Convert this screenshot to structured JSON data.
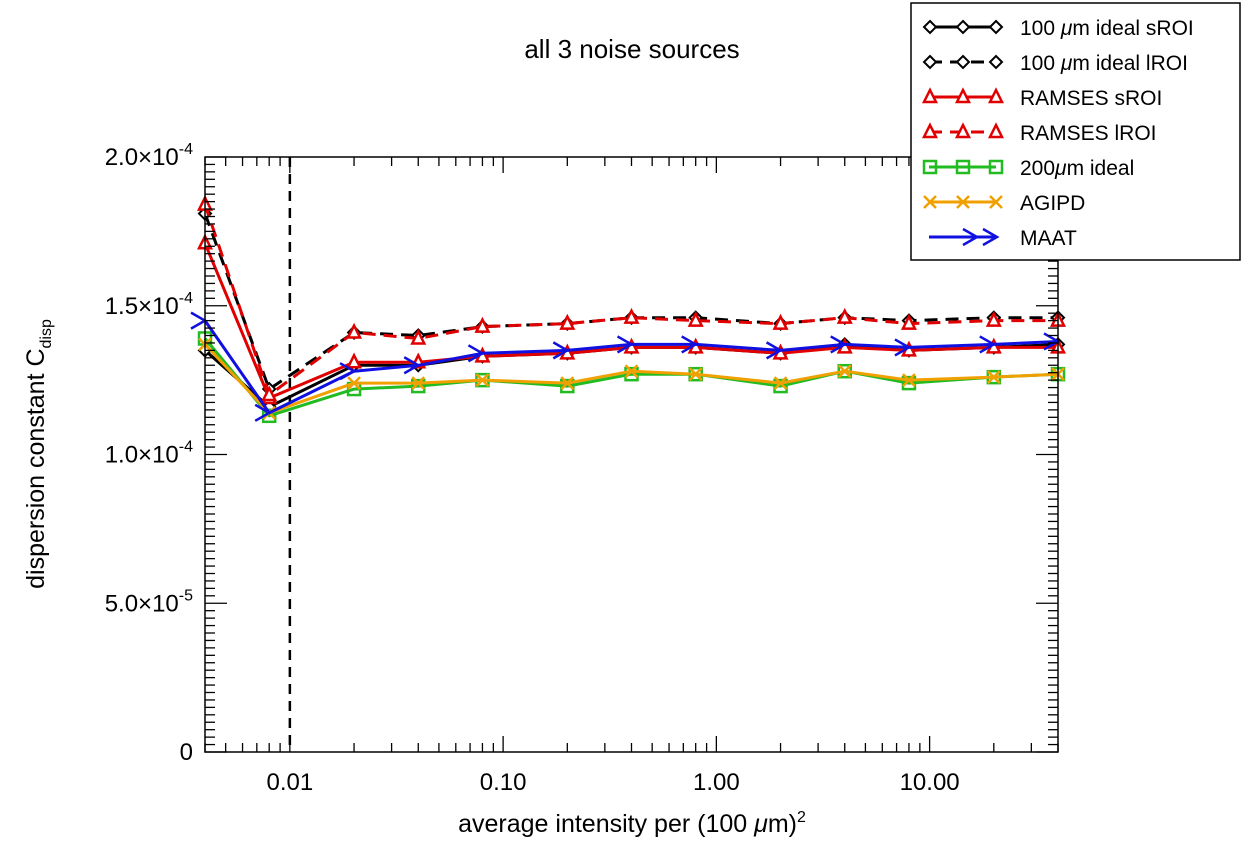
{
  "chart_data": {
    "type": "line",
    "title": "all 3 noise sources",
    "xlabel": {
      "main": "average intensity per (100 ",
      "unit": "m)",
      "sup": "2"
    },
    "ylabel": {
      "main": "dispersion constant C",
      "sub": "disp"
    },
    "x_scale": "log",
    "xlim": [
      0.004,
      40
    ],
    "ylim": [
      0,
      0.0002
    ],
    "x_ticks": [
      {
        "value": 0.01,
        "label": "0.01"
      },
      {
        "value": 0.1,
        "label": "0.10"
      },
      {
        "value": 1,
        "label": "1.00"
      },
      {
        "value": 10,
        "label": "10.00"
      }
    ],
    "y_ticks": [
      {
        "value": 0,
        "mant": "0",
        "exp": ""
      },
      {
        "value": 5e-05,
        "mant": "5.0×10",
        "exp": "-5"
      },
      {
        "value": 0.0001,
        "mant": "1.0×10",
        "exp": "-4"
      },
      {
        "value": 0.00015,
        "mant": "1.5×10",
        "exp": "-4"
      },
      {
        "value": 0.0002,
        "mant": "2.0×10",
        "exp": "-4"
      }
    ],
    "vline": {
      "x": 0.01,
      "color": "#000000",
      "dash": true
    },
    "grid": false,
    "legend_position": "top-right",
    "x": [
      0.004,
      0.008,
      0.02,
      0.04,
      0.08,
      0.2,
      0.4,
      0.8,
      2,
      4,
      8,
      20,
      40
    ],
    "series": [
      {
        "name_parts": [
          "100 ",
          "μ",
          "m ideal sROI"
        ],
        "color": "#000000",
        "dashed": false,
        "marker": "diamond",
        "values": [
          0.000135,
          0.000116,
          0.00013,
          0.00013,
          0.000133,
          0.000134,
          0.000136,
          0.000136,
          0.000134,
          0.000137,
          0.000135,
          0.000136,
          0.000137
        ]
      },
      {
        "name_parts": [
          "100 ",
          "μ",
          "m ideal lROI"
        ],
        "color": "#000000",
        "dashed": true,
        "marker": "diamond",
        "values": [
          0.000181,
          0.000122,
          0.000141,
          0.00014,
          0.000143,
          0.000144,
          0.000146,
          0.000146,
          0.000144,
          0.000146,
          0.000145,
          0.000146,
          0.000146
        ]
      },
      {
        "name_parts": [
          "RAMSES sROI"
        ],
        "color": "#e00000",
        "dashed": false,
        "marker": "triangle",
        "values": [
          0.000171,
          0.000119,
          0.000131,
          0.000131,
          0.000133,
          0.000134,
          0.000136,
          0.000136,
          0.000134,
          0.000136,
          0.000135,
          0.000136,
          0.000136
        ]
      },
      {
        "name_parts": [
          "RAMSES lROI"
        ],
        "color": "#e00000",
        "dashed": true,
        "marker": "triangle",
        "values": [
          0.000184,
          0.00012,
          0.000141,
          0.000139,
          0.000143,
          0.000144,
          0.000146,
          0.000145,
          0.000144,
          0.000146,
          0.000144,
          0.000145,
          0.000145
        ]
      },
      {
        "name_parts": [
          "200",
          "μ",
          "m ideal"
        ],
        "color": "#22bb22",
        "dashed": false,
        "marker": "square",
        "values": [
          0.000139,
          0.000113,
          0.000122,
          0.000123,
          0.000125,
          0.000123,
          0.000127,
          0.000127,
          0.000123,
          0.000128,
          0.000124,
          0.000126,
          0.000127
        ]
      },
      {
        "name_parts": [
          "AGIPD"
        ],
        "color": "#f0a000",
        "dashed": false,
        "marker": "x",
        "values": [
          0.000137,
          0.000114,
          0.000124,
          0.000124,
          0.000125,
          0.000124,
          0.000128,
          0.000127,
          0.000124,
          0.000128,
          0.000125,
          0.000126,
          0.000127
        ]
      },
      {
        "name_parts": [
          "MAAT"
        ],
        "color": "#1010e0",
        "dashed": false,
        "marker": "arrow",
        "values": [
          0.000145,
          0.000114,
          0.000128,
          0.00013,
          0.000134,
          0.000135,
          0.000137,
          0.000137,
          0.000135,
          0.000137,
          0.000136,
          0.000137,
          0.000138
        ]
      }
    ]
  }
}
